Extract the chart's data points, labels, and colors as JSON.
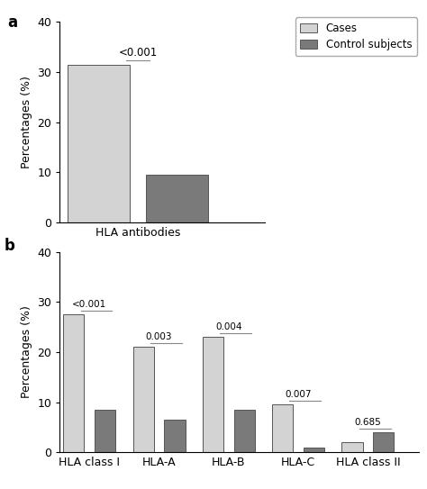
{
  "panel_a": {
    "categories": [
      "Cases",
      "Control subjects"
    ],
    "values": [
      31.5,
      9.5
    ],
    "colors": [
      "#d3d3d3",
      "#7a7a7a"
    ],
    "xlabel": "HLA antibodies",
    "ylabel": "Percentages (%)",
    "ylim": [
      0,
      40
    ],
    "yticks": [
      0,
      10,
      20,
      30,
      40
    ],
    "pvalue": "<0.001"
  },
  "panel_b": {
    "groups": [
      "HLA class I",
      "HLA-A",
      "HLA-B",
      "HLA-C",
      "HLA class II"
    ],
    "cases_values": [
      27.5,
      21.0,
      23.0,
      9.5,
      2.0
    ],
    "controls_values": [
      8.5,
      6.5,
      8.5,
      1.0,
      4.0
    ],
    "colors_cases": "#d3d3d3",
    "colors_controls": "#7a7a7a",
    "ylabel": "Percentages (%)",
    "ylim": [
      0,
      40
    ],
    "yticks": [
      0,
      10,
      20,
      30,
      40
    ],
    "pvalues": [
      "<0.001",
      "0.003",
      "0.004",
      "0.007",
      "0.685"
    ]
  },
  "legend_cases_color": "#d3d3d3",
  "legend_controls_color": "#7a7a7a",
  "legend_cases_label": "Cases",
  "legend_controls_label": "Control subjects",
  "bar_edgecolor": "#555555",
  "bar_edgewidth": 0.7
}
